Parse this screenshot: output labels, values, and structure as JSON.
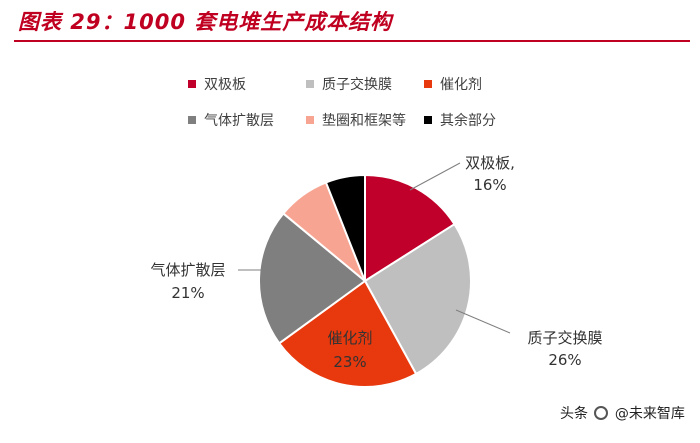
{
  "header": {
    "title": "图表 29：1000 套电堆生产成本结构"
  },
  "chart_data": {
    "type": "pie",
    "title": "",
    "legend_position": "top",
    "series": [
      {
        "name": "双极板",
        "value": 16,
        "label": "16%",
        "color": "#c0002a"
      },
      {
        "name": "质子交换膜",
        "value": 26,
        "label": "26%",
        "color": "#bfbfbf"
      },
      {
        "name": "催化剂",
        "value": 23,
        "label": "23%",
        "color": "#e8380d"
      },
      {
        "name": "气体扩散层",
        "value": 21,
        "label": "21%",
        "color": "#7f7f7f"
      },
      {
        "name": "垫圈和框架等",
        "value": 8,
        "label": "",
        "color": "#f7a493"
      },
      {
        "name": "其余部分",
        "value": 6,
        "label": "",
        "color": "#000000"
      }
    ],
    "data_labels": [
      {
        "name": "双极板,",
        "value": "16%"
      },
      {
        "name": "质子交换膜",
        "value": "26%"
      },
      {
        "name": "催化剂",
        "value": "23%"
      },
      {
        "name": "气体扩散层",
        "value": "21%"
      }
    ]
  },
  "watermark": {
    "text_left": "头条",
    "text_right": "@未来智库"
  }
}
